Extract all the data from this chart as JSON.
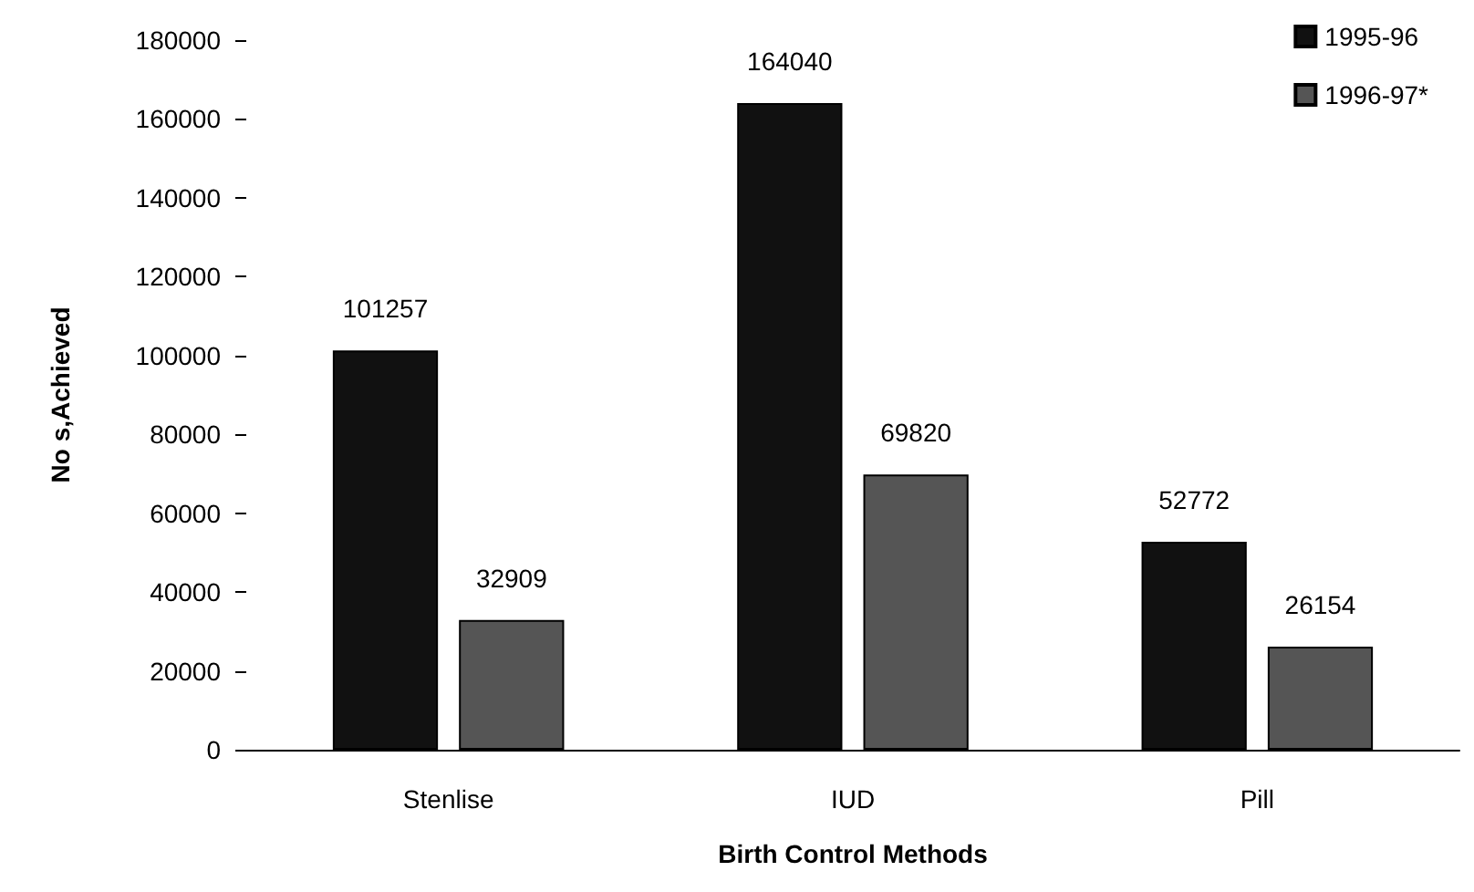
{
  "chart_data": {
    "type": "bar",
    "xlabel": "Birth Control Methods",
    "ylabel": "No s,Achieved",
    "categories": [
      "Stenlise",
      "IUD",
      "Pill"
    ],
    "series": [
      {
        "name": "1995-96",
        "color": "#111111",
        "values": [
          101257,
          164040,
          52772
        ]
      },
      {
        "name": "1996-97*",
        "color": "#555555",
        "values": [
          32909,
          69820,
          26154
        ]
      }
    ],
    "ylim": [
      0,
      180000
    ],
    "yticks": [
      0,
      20000,
      40000,
      60000,
      80000,
      100000,
      120000,
      140000,
      160000,
      180000
    ],
    "grid": false,
    "legend": "top right",
    "data_labels": true
  }
}
